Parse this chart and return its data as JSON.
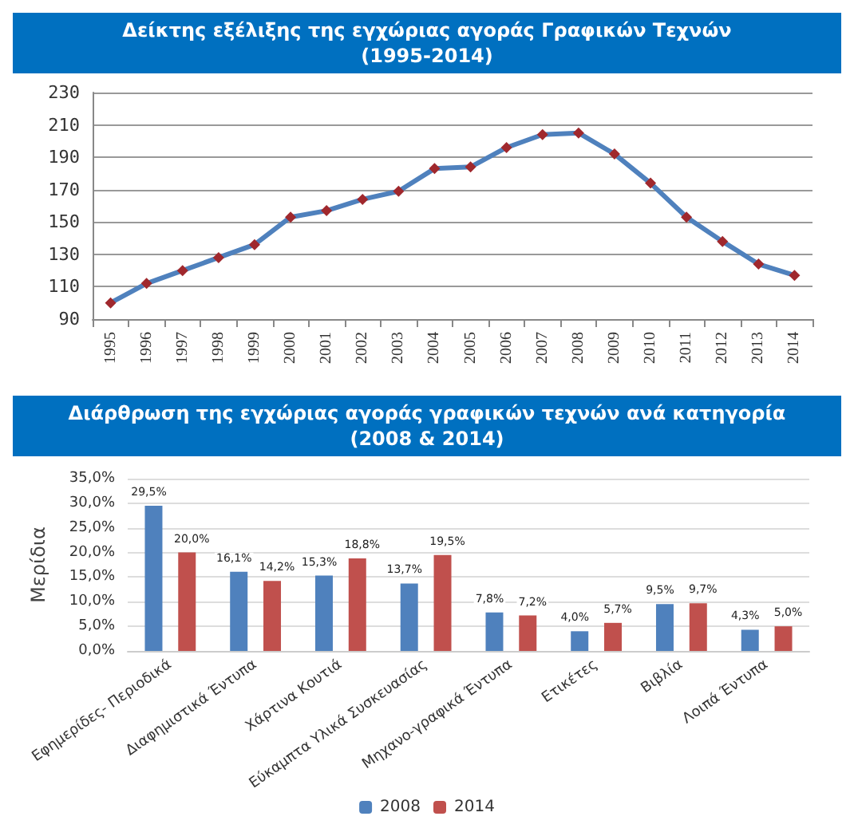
{
  "chart_data": [
    {
      "type": "line",
      "title": "Δείκτης εξέλιξης της εγχώριας αγοράς Γραφικών Τεχνών\n(1995-2014)",
      "categories": [
        "1995",
        "1996",
        "1997",
        "1998",
        "1999",
        "2000",
        "2001",
        "2002",
        "2003",
        "2004",
        "2005",
        "2006",
        "2007",
        "2008",
        "2009",
        "2010",
        "2011",
        "2012",
        "2013",
        "2014"
      ],
      "series": [
        {
          "color": "#4f81bd",
          "values": [
            100,
            112,
            120,
            128,
            136,
            153,
            157,
            164,
            169,
            183,
            184,
            196,
            204,
            205,
            192,
            174,
            153,
            138,
            124,
            117
          ]
        }
      ],
      "ylim": [
        90,
        230
      ],
      "yticks": [
        90,
        110,
        130,
        150,
        170,
        190,
        210,
        230
      ],
      "grid": "y",
      "marker": "diamond",
      "legend": false
    },
    {
      "type": "bar",
      "title": "Διάρθρωση της εγχώριας αγοράς γραφικών τεχνών ανά κατηγορία\n(2008 & 2014)",
      "ylabel": "Μερίδια",
      "categories": [
        "Εφημερίδες- Περιοδικά",
        "Διαφημιστικά Έντυπα",
        "Χάρτινα Κουτιά",
        "Εύκαμπτα Υλικά Συσκευασίας",
        "Μηχανο-γραφικά Έντυπα",
        "Ετικέτες",
        "Βιβλία",
        "Λοιπά Έντυπα"
      ],
      "series": [
        {
          "name": "2008",
          "color": "#4f81bd",
          "values": [
            29.5,
            16.1,
            15.3,
            13.7,
            7.8,
            4.0,
            9.5,
            4.3
          ],
          "value_labels": [
            "29,5%",
            "16,1%",
            "15,3%",
            "13,7%",
            "7,8%",
            "4,0%",
            "9,5%",
            "4,3%"
          ]
        },
        {
          "name": "2014",
          "color": "#c0504d",
          "values": [
            20.0,
            14.2,
            18.8,
            19.5,
            7.2,
            5.7,
            9.7,
            5.0
          ],
          "value_labels": [
            "20,0%",
            "14,2%",
            "18,8%",
            "19,5%",
            "7,2%",
            "5,7%",
            "9,7%",
            "5,0%"
          ]
        }
      ],
      "ylim": [
        0,
        35
      ],
      "yticks": [
        {
          "value": 0,
          "label": "0,0%"
        },
        {
          "value": 5,
          "label": "5,0%"
        },
        {
          "value": 10,
          "label": "10,0%"
        },
        {
          "value": 15,
          "label": "15,0%"
        },
        {
          "value": 20,
          "label": "20,0%"
        },
        {
          "value": 25,
          "label": "25,0%"
        },
        {
          "value": 30,
          "label": "30,0%"
        },
        {
          "value": 35,
          "label": "35,0%"
        }
      ],
      "grid": "y",
      "legend": "bottom"
    }
  ]
}
